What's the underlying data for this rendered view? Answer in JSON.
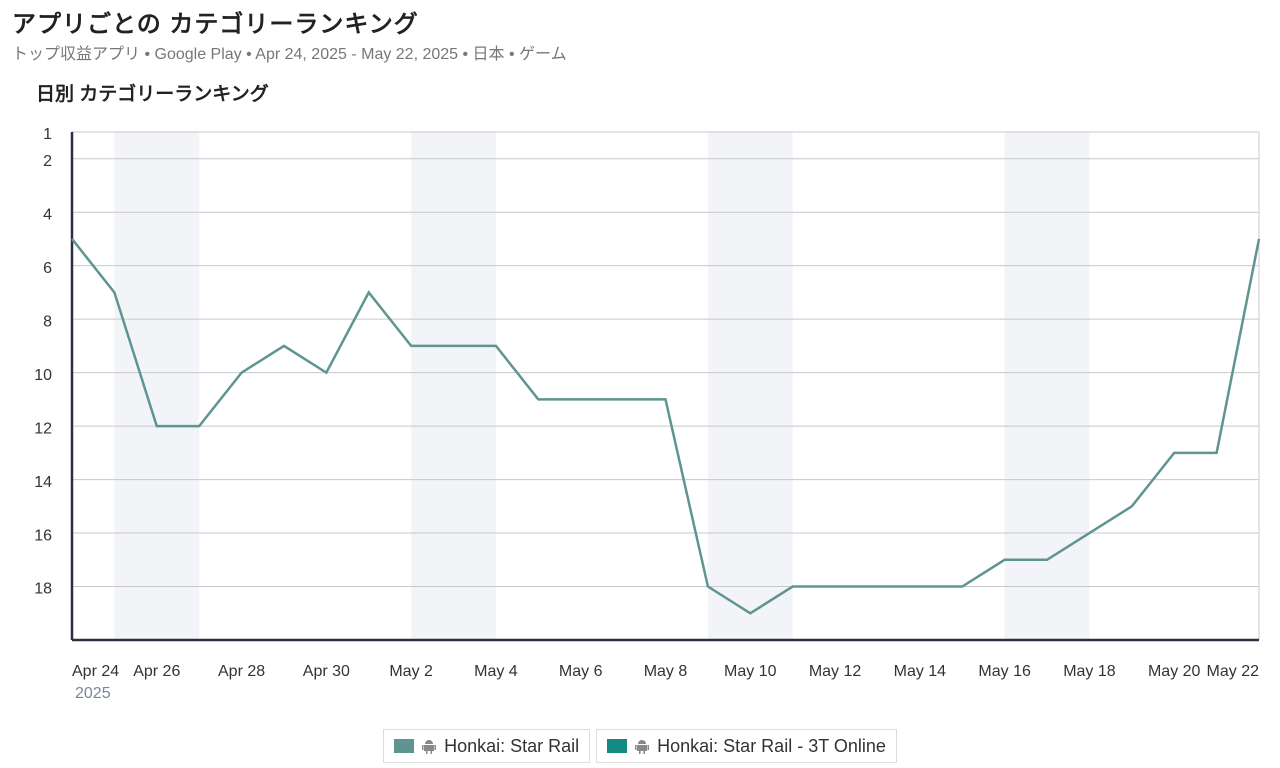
{
  "header": {
    "title": "アプリごとの カテゴリーランキング",
    "subtitle": "トップ収益アプリ • Google Play • Apr 24, 2025 - May 22, 2025 • 日本 • ゲーム"
  },
  "chart_data": {
    "type": "line",
    "title": "日別 カテゴリーランキング",
    "categories": [
      "Apr 24",
      null,
      "Apr 26",
      null,
      "Apr 28",
      null,
      "Apr 30",
      null,
      "May 2",
      null,
      "May 4",
      null,
      "May 6",
      null,
      "May 8",
      null,
      "May 10",
      null,
      "May 12",
      null,
      "May 14",
      null,
      "May 16",
      null,
      "May 18",
      null,
      "May 20",
      null,
      "May 22"
    ],
    "x_sublabel": "2025",
    "series": [
      {
        "name": "Honkai: Star Rail",
        "color": "#5f9591",
        "values": [
          5,
          7,
          12,
          12,
          10,
          9,
          10,
          7,
          9,
          9,
          9,
          11,
          11,
          11,
          11,
          18,
          19,
          18,
          18,
          18,
          18,
          18,
          17,
          17,
          16,
          15,
          13,
          13,
          5
        ]
      },
      {
        "name": "Honkai: Star Rail - 3T Online",
        "color": "#138a82",
        "values": [
          null,
          null,
          null,
          null,
          null,
          null,
          null,
          null,
          null,
          null,
          null,
          null,
          null,
          null,
          null,
          null,
          null,
          null,
          null,
          null,
          null,
          null,
          null,
          null,
          null,
          null,
          null,
          null,
          null
        ]
      }
    ],
    "ylim": [
      1,
      20
    ],
    "y_inverted": true,
    "yticks": [
      1,
      2,
      4,
      6,
      8,
      10,
      12,
      14,
      16,
      18
    ],
    "grid": true,
    "legend": "bottom"
  }
}
